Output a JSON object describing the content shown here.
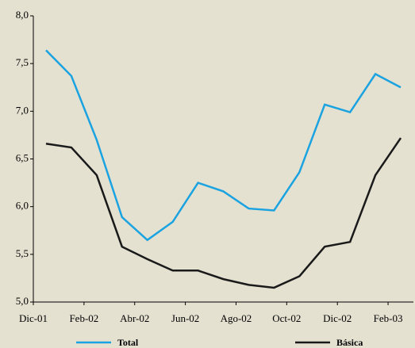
{
  "chart_data": {
    "type": "line",
    "categories": [
      "Dic-01",
      null,
      "Feb-02",
      null,
      "Abr-02",
      null,
      "Jun-02",
      null,
      "Ago-02",
      null,
      "Oct-02",
      null,
      "Dic-02",
      null,
      "Feb-03"
    ],
    "series": [
      {
        "name": "Total",
        "color": "#1aa3e0",
        "values": [
          7.64,
          7.37,
          6.7,
          5.89,
          5.65,
          5.84,
          6.25,
          6.16,
          5.98,
          5.96,
          6.36,
          7.07,
          6.99,
          7.39,
          7.25
        ]
      },
      {
        "name": "Básica",
        "color": "#1a1a1a",
        "values": [
          6.66,
          6.62,
          6.33,
          5.58,
          5.45,
          5.33,
          5.33,
          5.24,
          5.18,
          5.15,
          5.27,
          5.58,
          5.63,
          6.33,
          6.72
        ]
      }
    ],
    "ylim": [
      5.0,
      8.0
    ],
    "yticks": [
      {
        "value": 5.0,
        "label": "5,0"
      },
      {
        "value": 5.5,
        "label": "5,5"
      },
      {
        "value": 6.0,
        "label": "6,0"
      },
      {
        "value": 6.5,
        "label": "6,5"
      },
      {
        "value": 7.0,
        "label": "7,0"
      },
      {
        "value": 7.5,
        "label": "7,5"
      },
      {
        "value": 8.0,
        "label": "8,0"
      }
    ]
  }
}
